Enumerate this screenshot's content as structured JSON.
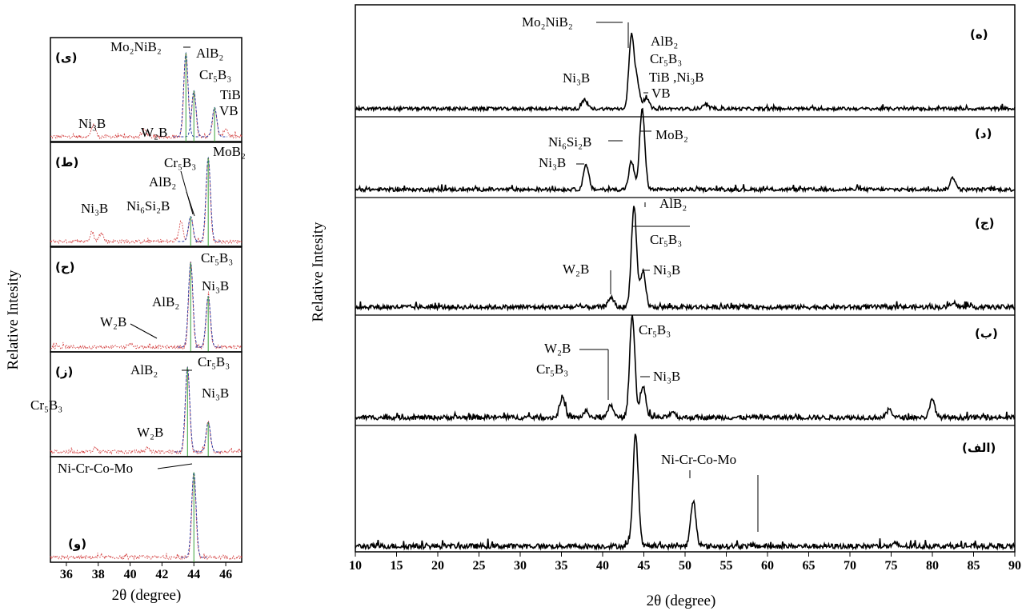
{
  "chart_data": [
    {
      "id": "left",
      "type": "line",
      "xlabel": "2θ (degree)",
      "ylabel": "Relative Intesity",
      "xlim": [
        35,
        47
      ],
      "x_ticks": [
        "36",
        "38",
        "40",
        "42",
        "44",
        "46"
      ],
      "panels": [
        {
          "label": "(ی)",
          "peaks": [
            [
              37.7,
              0.15
            ],
            [
              40.9,
              0.08
            ],
            [
              43.5,
              1.0
            ],
            [
              44.0,
              0.55
            ],
            [
              45.3,
              0.35
            ],
            [
              46.0,
              0.1
            ]
          ],
          "annotations": [
            "Mo₂NiB₂",
            "AlB₂",
            "Cr₅B₃",
            "TiB",
            "VB",
            "Ni₃B",
            "W₂B"
          ]
        },
        {
          "label": "(ط)",
          "peaks": [
            [
              37.6,
              0.12
            ],
            [
              38.2,
              0.1
            ],
            [
              43.2,
              0.25
            ],
            [
              43.8,
              0.3
            ],
            [
              44.9,
              1.0
            ]
          ],
          "annotations": [
            "MoB₂",
            "Cr₅B₃",
            "AlB₂",
            "Ni₃B",
            "Ni₆Si₂B"
          ]
        },
        {
          "label": "(ح)",
          "peaks": [
            [
              40.0,
              0.05
            ],
            [
              43.8,
              1.0
            ],
            [
              44.9,
              0.6
            ]
          ],
          "annotations": [
            "Cr₅B₃",
            "Ni₃B",
            "AlB₂",
            "W₂B"
          ]
        },
        {
          "label": "(ز)",
          "peaks": [
            [
              37.8,
              0.05
            ],
            [
              41.1,
              0.05
            ],
            [
              43.6,
              1.0
            ],
            [
              44.9,
              0.35
            ]
          ],
          "annotations": [
            "AlB₂",
            "Cr₅B₃",
            "Cr₅B₃",
            "Ni₃B",
            "W₂B"
          ]
        },
        {
          "label": "(و)",
          "peaks": [
            [
              44.0,
              1.0
            ]
          ],
          "annotations": [
            "Ni-Cr-Co-Mo"
          ]
        }
      ]
    },
    {
      "id": "right",
      "type": "line",
      "xlabel": "2θ (degree)",
      "ylabel": "Relative Intesity",
      "xlim": [
        10,
        90
      ],
      "x_ticks": [
        "10",
        "15",
        "20",
        "25",
        "30",
        "35",
        "40",
        "45",
        "50",
        "55",
        "60",
        "65",
        "70",
        "75",
        "80",
        "85",
        "90"
      ],
      "panels": [
        {
          "label": "(ه)",
          "peaks": [
            [
              37.8,
              0.12
            ],
            [
              43.5,
              1.0
            ],
            [
              44.2,
              0.35
            ],
            [
              45.3,
              0.15
            ],
            [
              52.5,
              0.05
            ]
          ],
          "annotations": [
            "Mo₂NiB₂",
            "AlB₂",
            "Cr₅B₃",
            "TiB ,Ni₃B",
            "VB",
            "Ni₃B"
          ]
        },
        {
          "label": "(د)",
          "peaks": [
            [
              38.0,
              0.3
            ],
            [
              43.5,
              0.35
            ],
            [
              44.8,
              1.0
            ],
            [
              82.5,
              0.15
            ]
          ],
          "annotations": [
            "MoB₂",
            "Ni₆Si₂B",
            "Ni₃B"
          ]
        },
        {
          "label": "(ج)",
          "peaks": [
            [
              41.0,
              0.1
            ],
            [
              43.8,
              1.0
            ],
            [
              44.9,
              0.35
            ],
            [
              82.5,
              0.05
            ]
          ],
          "annotations": [
            "AlB₂",
            "Cr₅B₃",
            "W₂B",
            "Ni₃B"
          ]
        },
        {
          "label": "(ب)",
          "peaks": [
            [
              35.1,
              0.2
            ],
            [
              38.0,
              0.06
            ],
            [
              41.0,
              0.12
            ],
            [
              43.6,
              1.0
            ],
            [
              44.9,
              0.3
            ],
            [
              48.5,
              0.06
            ],
            [
              74.8,
              0.08
            ],
            [
              80.0,
              0.17
            ]
          ],
          "annotations": [
            "Cr₅B₃",
            "W₂B",
            "Cr₅B₃",
            "Ni₃B"
          ]
        },
        {
          "label": "(الف)",
          "peaks": [
            [
              44.0,
              1.0
            ],
            [
              51.0,
              0.4
            ],
            [
              75.5,
              0.02
            ]
          ],
          "annotations": [
            "Ni-Cr-Co-Mo"
          ]
        }
      ]
    }
  ]
}
